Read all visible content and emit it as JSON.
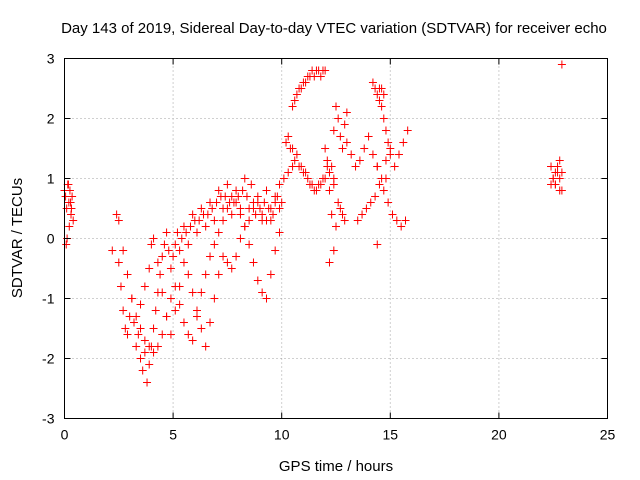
{
  "chart_data": {
    "type": "scatter",
    "title": "Day 143 of 2019, Sidereal Day-to-day VTEC variation (SDTVAR) for receiver echo",
    "xlabel": "GPS time / hours",
    "ylabel": "SDTVAR / TECUs",
    "xlim": [
      0,
      25
    ],
    "ylim": [
      -3,
      3
    ],
    "xticks": [
      "0",
      "5",
      "10",
      "15",
      "20",
      "25"
    ],
    "yticks": [
      "-3",
      "-2",
      "-1",
      "0",
      "1",
      "2",
      "3"
    ],
    "grid": true,
    "marker": "plus",
    "color": "#ff0000",
    "series": [
      {
        "x": [
          0.0,
          0.05,
          0.1,
          0.15,
          0.2,
          0.25,
          0.3,
          0.35,
          0.4,
          0.12,
          0.22,
          0.32,
          0.08,
          0.18,
          0.28,
          2.2,
          2.4,
          2.5,
          2.6,
          2.7,
          2.8,
          2.9,
          3.0,
          3.1,
          3.2,
          3.3,
          3.4,
          3.5,
          3.6,
          3.7,
          3.8,
          3.9,
          4.0,
          4.1,
          4.2,
          4.3,
          4.4,
          4.5,
          4.6,
          4.7,
          4.8,
          4.9,
          5.0,
          5.1,
          5.2,
          5.3,
          5.4,
          5.5,
          5.6,
          5.7,
          5.8,
          5.9,
          6.0,
          6.1,
          6.2,
          6.3,
          6.4,
          6.5,
          6.6,
          6.7,
          6.8,
          6.9,
          7.0,
          7.1,
          7.2,
          7.3,
          7.4,
          7.5,
          7.6,
          7.7,
          7.8,
          7.9,
          8.0,
          8.1,
          8.2,
          8.3,
          8.4,
          8.5,
          8.6,
          8.7,
          8.8,
          8.9,
          9.0,
          9.1,
          9.2,
          9.3,
          9.4,
          9.5,
          9.6,
          9.7,
          9.8,
          9.9,
          10.0,
          2.5,
          2.7,
          2.9,
          3.1,
          3.3,
          3.5,
          3.7,
          3.9,
          4.0,
          4.1,
          4.3,
          4.5,
          4.7,
          4.9,
          5.1,
          5.3,
          5.5,
          5.7,
          5.9,
          6.1,
          6.3,
          6.5,
          6.7,
          6.9,
          7.1,
          7.3,
          7.5,
          7.7,
          7.9,
          8.1,
          8.3,
          8.5,
          8.7,
          8.9,
          9.1,
          9.3,
          9.5,
          9.7,
          9.9,
          3.5,
          3.7,
          3.9,
          4.1,
          4.3,
          4.5,
          4.7,
          4.9,
          5.1,
          5.3,
          5.5,
          5.7,
          5.9,
          6.1,
          6.3,
          6.5,
          6.7,
          6.9,
          7.1,
          7.3,
          7.5,
          7.7,
          7.9,
          8.1,
          8.3,
          8.5,
          8.7,
          8.9,
          9.1,
          9.3,
          9.5,
          9.7,
          9.9,
          10.1,
          10.3,
          10.5,
          10.2,
          10.4,
          10.6,
          10.8,
          11.0,
          11.2,
          11.4,
          11.6,
          11.8,
          12.0,
          10.3,
          10.5,
          10.7,
          10.9,
          11.1,
          11.3,
          11.5,
          11.7,
          11.9,
          12.1,
          10.5,
          10.6,
          10.7,
          10.8,
          10.9,
          11.0,
          11.1,
          11.2,
          11.3,
          11.4,
          11.5,
          11.6,
          11.7,
          11.8,
          11.9,
          12.0,
          12.2,
          12.3,
          12.4,
          12.5,
          12.6,
          12.7,
          12.8,
          12.9,
          13.0,
          12.3,
          12.5,
          12.7,
          12.9,
          12.4,
          12.6,
          12.8,
          12.2,
          12.4,
          13.0,
          13.2,
          13.4,
          13.6,
          13.8,
          14.0,
          14.2,
          14.4,
          14.6,
          14.8,
          15.0,
          15.2,
          15.4,
          15.6,
          15.8,
          14.2,
          14.3,
          14.4,
          14.5,
          14.6,
          14.7,
          14.8,
          14.9,
          15.0,
          14.5,
          14.6,
          14.7,
          14.4,
          14.8,
          13.5,
          13.7,
          13.9,
          14.1,
          14.3,
          14.5,
          14.7,
          14.9,
          15.1,
          15.3,
          15.5,
          15.7,
          12.0,
          12.1,
          12.2,
          12.4,
          14.4,
          22.4,
          22.5,
          22.6,
          22.7,
          22.8,
          22.9,
          22.5,
          22.6,
          22.7,
          22.8,
          22.4,
          22.6,
          22.8,
          22.9,
          22.9
        ],
        "y": [
          0.8,
          0.7,
          0.5,
          0.9,
          0.6,
          0.8,
          0.4,
          0.7,
          0.3,
          0.0,
          0.2,
          0.5,
          -0.1,
          0.9,
          0.6,
          -0.2,
          0.4,
          -0.4,
          -0.8,
          -1.2,
          -1.5,
          -1.6,
          -1.3,
          -1.0,
          -1.4,
          -1.8,
          -1.6,
          -2.0,
          -2.2,
          -1.9,
          -2.4,
          -2.1,
          -1.8,
          -1.5,
          -1.2,
          -0.9,
          -0.6,
          -0.3,
          -0.1,
          0.1,
          -0.2,
          -0.5,
          -0.3,
          -0.1,
          0.1,
          -0.2,
          0.0,
          0.2,
          0.1,
          -0.1,
          0.2,
          0.4,
          0.3,
          0.1,
          0.3,
          0.5,
          0.4,
          0.2,
          0.4,
          0.6,
          0.5,
          0.3,
          0.6,
          0.8,
          0.7,
          0.5,
          0.7,
          0.9,
          0.6,
          0.4,
          0.6,
          0.8,
          0.7,
          0.5,
          0.8,
          1.0,
          0.7,
          0.5,
          0.9,
          0.6,
          0.4,
          0.7,
          0.5,
          0.3,
          0.6,
          0.8,
          0.5,
          0.3,
          0.4,
          0.6,
          0.7,
          0.5,
          0.6,
          0.3,
          -0.2,
          -0.6,
          -1.0,
          -1.3,
          -1.1,
          -0.8,
          -0.5,
          -0.1,
          0.0,
          -0.4,
          -0.9,
          -1.3,
          -1.6,
          -1.2,
          -0.8,
          -0.4,
          -0.6,
          -0.9,
          -1.2,
          -1.5,
          -1.8,
          -1.4,
          -1.0,
          -0.6,
          -0.3,
          -0.4,
          -0.5,
          -0.3,
          0.0,
          0.2,
          -0.1,
          -0.4,
          -0.7,
          -0.9,
          -1.0,
          -0.6,
          -0.2,
          0.1,
          -1.5,
          -1.7,
          -1.8,
          -1.9,
          -1.8,
          -1.6,
          -1.3,
          -1.0,
          -0.8,
          -1.1,
          -1.4,
          -1.6,
          -1.7,
          -1.3,
          -0.9,
          -0.6,
          -0.3,
          -0.1,
          0.1,
          0.3,
          0.5,
          0.7,
          0.6,
          0.4,
          0.2,
          0.3,
          0.5,
          0.6,
          0.4,
          0.3,
          0.5,
          0.7,
          0.9,
          1.0,
          1.1,
          1.2,
          1.6,
          1.5,
          1.3,
          1.2,
          1.1,
          1.0,
          0.9,
          0.8,
          0.9,
          1.0,
          1.7,
          1.5,
          1.4,
          1.2,
          1.1,
          0.9,
          0.8,
          0.9,
          1.0,
          1.2,
          2.2,
          2.3,
          2.4,
          2.5,
          2.5,
          2.6,
          2.6,
          2.7,
          2.7,
          2.8,
          2.7,
          2.8,
          2.8,
          2.7,
          2.8,
          2.8,
          0.8,
          1.2,
          1.8,
          2.2,
          2.0,
          1.7,
          1.5,
          1.9,
          2.1,
          0.4,
          0.2,
          0.5,
          0.3,
          -0.2,
          0.6,
          0.4,
          -0.4,
          1.0,
          1.6,
          1.4,
          1.2,
          1.3,
          1.5,
          1.7,
          1.4,
          1.2,
          1.0,
          1.3,
          1.5,
          1.2,
          1.4,
          1.6,
          1.8,
          2.6,
          2.5,
          2.4,
          2.3,
          2.2,
          2.0,
          1.8,
          1.6,
          1.4,
          2.5,
          2.5,
          2.4,
          1.2,
          1.0,
          0.3,
          0.4,
          0.5,
          0.6,
          0.7,
          0.9,
          0.8,
          0.6,
          0.4,
          0.3,
          0.2,
          0.3,
          1.5,
          1.3,
          1.1,
          0.9,
          -0.1,
          0.9,
          1.0,
          1.1,
          1.2,
          1.0,
          0.8,
          1.0,
          0.9,
          1.1,
          1.3,
          1.2,
          0.9,
          0.8,
          1.1,
          2.9
        ]
      }
    ]
  }
}
